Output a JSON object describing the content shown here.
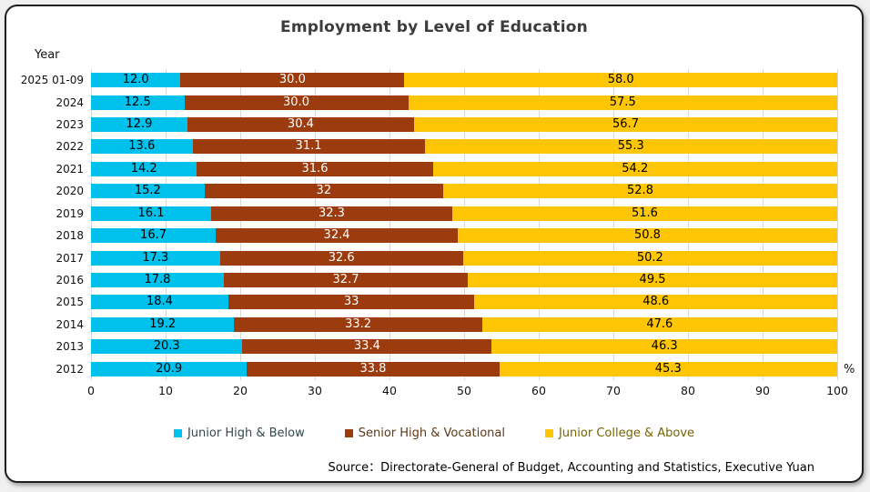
{
  "page": {
    "title": "Employment by Level of Education",
    "y_axis_title": "Year",
    "unit_label": "%",
    "source": "Source：Directorate-General of Budget, Accounting and Statistics, Executive Yuan"
  },
  "chart_data": {
    "type": "bar",
    "orientation": "horizontal",
    "stacked": true,
    "percent_stacked": true,
    "title": "Employment by Level of Education",
    "xlabel": "%",
    "ylabel": "Year",
    "xlim": [
      0,
      100
    ],
    "x_ticks": [
      0,
      10,
      20,
      30,
      40,
      50,
      60,
      70,
      80,
      90,
      100
    ],
    "grid": true,
    "legend_position": "bottom",
    "gridline_color": "#D8D8D8",
    "categories": [
      "2025 01-09",
      "2024",
      "2023",
      "2022",
      "2021",
      "2020",
      "2019",
      "2018",
      "2017",
      "2016",
      "2015",
      "2014",
      "2013",
      "2012"
    ],
    "series": [
      {
        "name": "Junior High & Below",
        "color": "#00C1EC",
        "label_color": "#000000",
        "legend_text_color": "#33494C",
        "values": [
          12.0,
          12.5,
          12.9,
          13.6,
          14.2,
          15.2,
          16.1,
          16.7,
          17.3,
          17.8,
          18.4,
          19.2,
          20.3,
          20.9
        ],
        "labels": [
          "12.0",
          "12.5",
          "12.9",
          "13.6",
          "14.2",
          "15.2",
          "16.1",
          "16.7",
          "17.3",
          "17.8",
          "18.4",
          "19.2",
          "20.3",
          "20.9"
        ]
      },
      {
        "name": "Senior High & Vocational",
        "color": "#9C3B0E",
        "label_color": "#FFFFFF",
        "legend_text_color": "#5B3A17",
        "values": [
          30.0,
          30.0,
          30.4,
          31.1,
          31.6,
          32,
          32.3,
          32.4,
          32.6,
          32.7,
          33,
          33.2,
          33.4,
          33.8
        ],
        "labels": [
          "30.0",
          "30.0",
          "30.4",
          "31.1",
          "31.6",
          "32",
          "32.3",
          "32.4",
          "32.6",
          "32.7",
          "33",
          "33.2",
          "33.4",
          "33.8"
        ]
      },
      {
        "name": "Junior College & Above",
        "color": "#FFC606",
        "label_color": "#000000",
        "legend_text_color": "#776200",
        "values": [
          58.0,
          57.5,
          56.7,
          55.3,
          54.2,
          52.8,
          51.6,
          50.8,
          50.2,
          49.5,
          48.6,
          47.6,
          46.3,
          45.3
        ],
        "labels": [
          "58.0",
          "57.5",
          "56.7",
          "55.3",
          "54.2",
          "52.8",
          "51.6",
          "50.8",
          "50.2",
          "49.5",
          "48.6",
          "47.6",
          "46.3",
          "45.3"
        ]
      }
    ]
  }
}
